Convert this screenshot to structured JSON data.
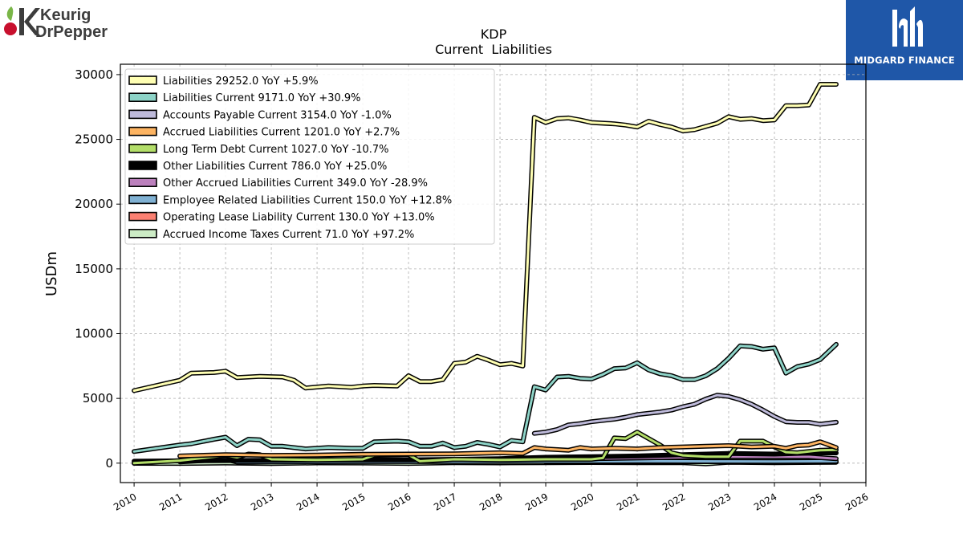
{
  "logos": {
    "left": {
      "line1": "Keurig",
      "line2": "DrPepper"
    },
    "right": {
      "text": "MIDGARD FINANCE"
    }
  },
  "chart_data": {
    "type": "line",
    "title": "KDP",
    "subtitle": "Current  Liabilities",
    "ylabel": "USDm",
    "xlabel": "",
    "xlim": [
      2009.7,
      2026.0
    ],
    "ylim": [
      -1500,
      30800
    ],
    "xticks": [
      2010,
      2011,
      2012,
      2013,
      2014,
      2015,
      2016,
      2017,
      2018,
      2019,
      2020,
      2021,
      2022,
      2023,
      2024,
      2025,
      2026
    ],
    "yticks": [
      0,
      5000,
      10000,
      15000,
      20000,
      25000,
      30000
    ],
    "grid": true,
    "legend_position": "top-left",
    "series": [
      {
        "name": "Liabilities",
        "legend": "Liabilities  29252.0 YoY +5.9%",
        "color": "#ffffb3",
        "points": [
          [
            2010.0,
            5600
          ],
          [
            2011.0,
            6400
          ],
          [
            2011.25,
            6950
          ],
          [
            2011.75,
            7000
          ],
          [
            2012.0,
            7100
          ],
          [
            2012.25,
            6600
          ],
          [
            2012.75,
            6700
          ],
          [
            2013.25,
            6650
          ],
          [
            2013.5,
            6400
          ],
          [
            2013.75,
            5800
          ],
          [
            2014.25,
            5950
          ],
          [
            2014.75,
            5850
          ],
          [
            2015.0,
            5950
          ],
          [
            2015.25,
            6000
          ],
          [
            2015.75,
            5950
          ],
          [
            2016.0,
            6750
          ],
          [
            2016.25,
            6300
          ],
          [
            2016.5,
            6300
          ],
          [
            2016.75,
            6450
          ],
          [
            2017.0,
            7700
          ],
          [
            2017.25,
            7800
          ],
          [
            2017.5,
            8250
          ],
          [
            2017.75,
            7950
          ],
          [
            2018.0,
            7600
          ],
          [
            2018.25,
            7700
          ],
          [
            2018.5,
            7500
          ],
          [
            2018.75,
            26700
          ],
          [
            2019.0,
            26300
          ],
          [
            2019.25,
            26600
          ],
          [
            2019.5,
            26650
          ],
          [
            2019.75,
            26500
          ],
          [
            2020.0,
            26300
          ],
          [
            2020.5,
            26200
          ],
          [
            2020.75,
            26100
          ],
          [
            2021.0,
            25950
          ],
          [
            2021.25,
            26400
          ],
          [
            2021.5,
            26150
          ],
          [
            2021.75,
            25950
          ],
          [
            2022.0,
            25650
          ],
          [
            2022.25,
            25750
          ],
          [
            2022.75,
            26250
          ],
          [
            2023.0,
            26750
          ],
          [
            2023.25,
            26550
          ],
          [
            2023.5,
            26600
          ],
          [
            2023.75,
            26450
          ],
          [
            2024.0,
            26500
          ],
          [
            2024.25,
            27600
          ],
          [
            2024.5,
            27600
          ],
          [
            2024.75,
            27650
          ],
          [
            2025.0,
            29250
          ],
          [
            2025.35,
            29252
          ]
        ]
      },
      {
        "name": "Liabilities Current",
        "legend": "Liabilities Current  9171.0 YoY +30.9%",
        "color": "#8dd3c7",
        "points": [
          [
            2010.0,
            900
          ],
          [
            2011.0,
            1400
          ],
          [
            2011.25,
            1500
          ],
          [
            2011.75,
            1850
          ],
          [
            2012.0,
            2000
          ],
          [
            2012.25,
            1350
          ],
          [
            2012.5,
            1850
          ],
          [
            2012.75,
            1800
          ],
          [
            2013.0,
            1300
          ],
          [
            2013.25,
            1300
          ],
          [
            2013.75,
            1100
          ],
          [
            2014.25,
            1200
          ],
          [
            2014.75,
            1150
          ],
          [
            2015.0,
            1150
          ],
          [
            2015.25,
            1650
          ],
          [
            2015.75,
            1700
          ],
          [
            2016.0,
            1650
          ],
          [
            2016.25,
            1300
          ],
          [
            2016.5,
            1300
          ],
          [
            2016.75,
            1550
          ],
          [
            2017.0,
            1200
          ],
          [
            2017.25,
            1300
          ],
          [
            2017.5,
            1600
          ],
          [
            2017.75,
            1450
          ],
          [
            2018.0,
            1250
          ],
          [
            2018.25,
            1750
          ],
          [
            2018.5,
            1650
          ],
          [
            2018.75,
            5900
          ],
          [
            2019.0,
            5650
          ],
          [
            2019.25,
            6650
          ],
          [
            2019.5,
            6700
          ],
          [
            2019.75,
            6550
          ],
          [
            2020.0,
            6500
          ],
          [
            2020.25,
            6850
          ],
          [
            2020.5,
            7300
          ],
          [
            2020.75,
            7350
          ],
          [
            2021.0,
            7750
          ],
          [
            2021.25,
            7200
          ],
          [
            2021.5,
            6900
          ],
          [
            2021.75,
            6750
          ],
          [
            2022.0,
            6450
          ],
          [
            2022.25,
            6450
          ],
          [
            2022.5,
            6750
          ],
          [
            2022.75,
            7300
          ],
          [
            2023.0,
            8100
          ],
          [
            2023.25,
            9050
          ],
          [
            2023.5,
            9000
          ],
          [
            2023.75,
            8800
          ],
          [
            2024.0,
            8900
          ],
          [
            2024.25,
            6950
          ],
          [
            2024.5,
            7450
          ],
          [
            2024.75,
            7650
          ],
          [
            2025.0,
            8000
          ],
          [
            2025.35,
            9171
          ]
        ]
      },
      {
        "name": "Accounts Payable Current",
        "legend": "Accounts Payable Current  3154.0 YoY -1.0%",
        "color": "#bebada",
        "points": [
          [
            2018.75,
            2300
          ],
          [
            2019.0,
            2400
          ],
          [
            2019.25,
            2600
          ],
          [
            2019.5,
            2950
          ],
          [
            2019.75,
            3050
          ],
          [
            2020.0,
            3200
          ],
          [
            2020.5,
            3400
          ],
          [
            2020.75,
            3550
          ],
          [
            2021.0,
            3750
          ],
          [
            2021.5,
            3950
          ],
          [
            2021.75,
            4100
          ],
          [
            2022.0,
            4350
          ],
          [
            2022.25,
            4550
          ],
          [
            2022.5,
            4950
          ],
          [
            2022.75,
            5250
          ],
          [
            2023.0,
            5150
          ],
          [
            2023.25,
            4900
          ],
          [
            2023.5,
            4550
          ],
          [
            2023.75,
            4100
          ],
          [
            2024.0,
            3600
          ],
          [
            2024.25,
            3200
          ],
          [
            2024.5,
            3150
          ],
          [
            2024.75,
            3150
          ],
          [
            2025.0,
            3000
          ],
          [
            2025.35,
            3154
          ]
        ]
      },
      {
        "name": "Accrued Liabilities Current",
        "legend": "Accrued Liabilities Current  1201.0 YoY +2.7%",
        "color": "#fdb462",
        "points": [
          [
            2011.0,
            550
          ],
          [
            2012.0,
            650
          ],
          [
            2013.0,
            600
          ],
          [
            2014.0,
            620
          ],
          [
            2015.0,
            680
          ],
          [
            2016.0,
            700
          ],
          [
            2017.0,
            720
          ],
          [
            2018.0,
            800
          ],
          [
            2018.5,
            750
          ],
          [
            2018.75,
            1200
          ],
          [
            2019.0,
            1100
          ],
          [
            2019.5,
            1000
          ],
          [
            2019.75,
            1200
          ],
          [
            2020.0,
            1100
          ],
          [
            2020.5,
            1150
          ],
          [
            2021.0,
            1100
          ],
          [
            2021.5,
            1200
          ],
          [
            2022.0,
            1250
          ],
          [
            2022.5,
            1300
          ],
          [
            2023.0,
            1350
          ],
          [
            2023.5,
            1250
          ],
          [
            2024.0,
            1300
          ],
          [
            2024.25,
            1150
          ],
          [
            2024.5,
            1350
          ],
          [
            2024.75,
            1400
          ],
          [
            2025.0,
            1650
          ],
          [
            2025.35,
            1201
          ]
        ]
      },
      {
        "name": "Long Term Debt Current",
        "legend": "Long Term Debt Current  1027.0 YoY -10.7%",
        "color": "#b3de69",
        "points": [
          [
            2010.0,
            0
          ],
          [
            2011.0,
            200
          ],
          [
            2012.0,
            600
          ],
          [
            2012.25,
            450
          ],
          [
            2012.5,
            700
          ],
          [
            2012.75,
            650
          ],
          [
            2013.0,
            300
          ],
          [
            2014.0,
            250
          ],
          [
            2015.0,
            300
          ],
          [
            2015.25,
            600
          ],
          [
            2016.0,
            650
          ],
          [
            2016.25,
            150
          ],
          [
            2017.0,
            300
          ],
          [
            2018.0,
            250
          ],
          [
            2019.0,
            300
          ],
          [
            2020.0,
            300
          ],
          [
            2020.25,
            400
          ],
          [
            2020.5,
            1950
          ],
          [
            2020.75,
            1900
          ],
          [
            2021.0,
            2400
          ],
          [
            2021.25,
            1900
          ],
          [
            2021.5,
            1400
          ],
          [
            2021.75,
            800
          ],
          [
            2022.0,
            600
          ],
          [
            2022.5,
            500
          ],
          [
            2023.0,
            500
          ],
          [
            2023.25,
            1700
          ],
          [
            2023.5,
            1700
          ],
          [
            2023.75,
            1700
          ],
          [
            2024.0,
            1250
          ],
          [
            2024.25,
            850
          ],
          [
            2024.5,
            800
          ],
          [
            2025.0,
            1000
          ],
          [
            2025.35,
            1027
          ]
        ]
      },
      {
        "name": "Other Liabilities Current",
        "legend": "Other Liabilities Current  786.0 YoY +25.0%",
        "color": "#000000",
        "points": [
          [
            2010.0,
            150
          ],
          [
            2012.0,
            200
          ],
          [
            2014.0,
            250
          ],
          [
            2016.0,
            250
          ],
          [
            2018.0,
            350
          ],
          [
            2019.0,
            450
          ],
          [
            2020.0,
            500
          ],
          [
            2021.0,
            550
          ],
          [
            2022.0,
            650
          ],
          [
            2023.0,
            750
          ],
          [
            2024.0,
            700
          ],
          [
            2025.0,
            800
          ],
          [
            2025.35,
            786
          ]
        ]
      },
      {
        "name": "Other Accrued Liabilities Current",
        "legend": "Other Accrued Liabilities Current  349.0 YoY -28.9%",
        "color": "#bc80bd",
        "points": [
          [
            2019.0,
            300
          ],
          [
            2020.0,
            350
          ],
          [
            2021.0,
            400
          ],
          [
            2022.0,
            450
          ],
          [
            2023.0,
            500
          ],
          [
            2024.0,
            500
          ],
          [
            2024.75,
            490
          ],
          [
            2025.35,
            349
          ]
        ]
      },
      {
        "name": "Employee Related Liabilities Current",
        "legend": "Employee Related Liabilities Current  150.0 YoY +12.8%",
        "color": "#80b1d3",
        "points": [
          [
            2011.0,
            100
          ],
          [
            2012.0,
            300
          ],
          [
            2012.25,
            80
          ],
          [
            2013.0,
            100
          ],
          [
            2014.0,
            110
          ],
          [
            2015.0,
            120
          ],
          [
            2016.0,
            120
          ],
          [
            2017.0,
            130
          ],
          [
            2018.0,
            130
          ],
          [
            2019.0,
            140
          ],
          [
            2020.0,
            140
          ],
          [
            2021.0,
            150
          ],
          [
            2022.0,
            140
          ],
          [
            2023.0,
            135
          ],
          [
            2024.0,
            133
          ],
          [
            2025.35,
            150
          ]
        ]
      },
      {
        "name": "Operating Lease Liability Current",
        "legend": "Operating Lease Liability Current  130.0 YoY +13.0%",
        "color": "#fb8072",
        "points": [
          [
            2019.0,
            80
          ],
          [
            2020.0,
            90
          ],
          [
            2021.0,
            100
          ],
          [
            2022.0,
            110
          ],
          [
            2023.0,
            115
          ],
          [
            2024.0,
            115
          ],
          [
            2025.35,
            130
          ]
        ]
      },
      {
        "name": "Accrued Income Taxes Current",
        "legend": "Accrued Income Taxes Current  71.0 YoY +97.2%",
        "color": "#ccebc5",
        "points": [
          [
            2010.0,
            -10
          ],
          [
            2011.0,
            -20
          ],
          [
            2012.0,
            10
          ],
          [
            2013.0,
            -30
          ],
          [
            2014.0,
            20
          ],
          [
            2015.0,
            10
          ],
          [
            2016.0,
            -20
          ],
          [
            2017.0,
            30
          ],
          [
            2018.0,
            20
          ],
          [
            2019.0,
            40
          ],
          [
            2020.0,
            50
          ],
          [
            2021.0,
            40
          ],
          [
            2022.0,
            30
          ],
          [
            2022.5,
            -50
          ],
          [
            2023.0,
            60
          ],
          [
            2024.0,
            36
          ],
          [
            2025.35,
            71
          ]
        ]
      }
    ]
  }
}
